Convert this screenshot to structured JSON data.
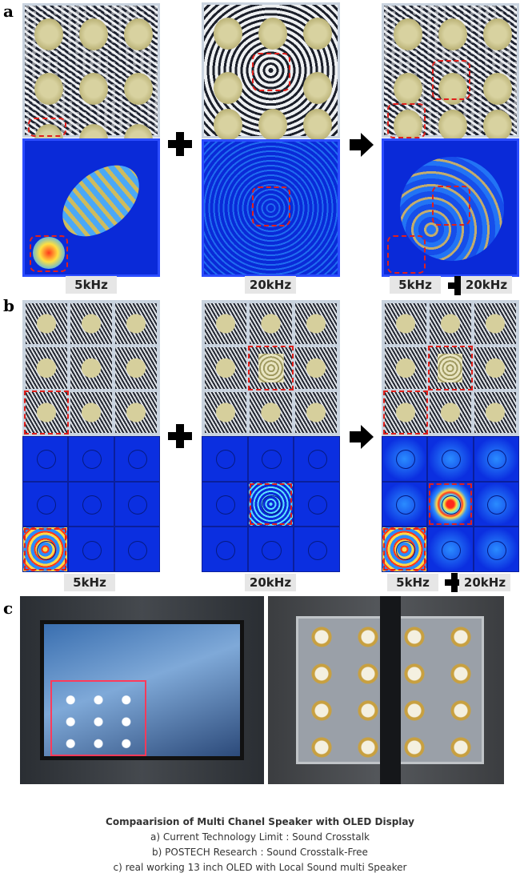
{
  "panels": {
    "a": {
      "label": "a",
      "freq_labels": {
        "left": "5kHz",
        "middle": "20kHz",
        "right_1": "5kHz",
        "right_2": "20kHz"
      }
    },
    "b": {
      "label": "b",
      "freq_labels": {
        "left": "5kHz",
        "middle": "20kHz",
        "right_1": "5kHz",
        "right_2": "20kHz"
      }
    },
    "c": {
      "label": "c"
    }
  },
  "operators": {
    "plus": "plus-icon",
    "arrow": "arrow-right-icon"
  },
  "colors": {
    "highlight": "#e0201c",
    "sim_background": "#0a2ad8"
  },
  "caption": {
    "title": "Compaarision of Multi Chanel Speaker with OLED Display",
    "lines": [
      "a) Current Technology Limit : Sound Crosstalk",
      "b) POSTECH Research : Sound Crosstalk-Free",
      "c) real working 13 inch OLED with Local Sound multi Speaker"
    ]
  }
}
